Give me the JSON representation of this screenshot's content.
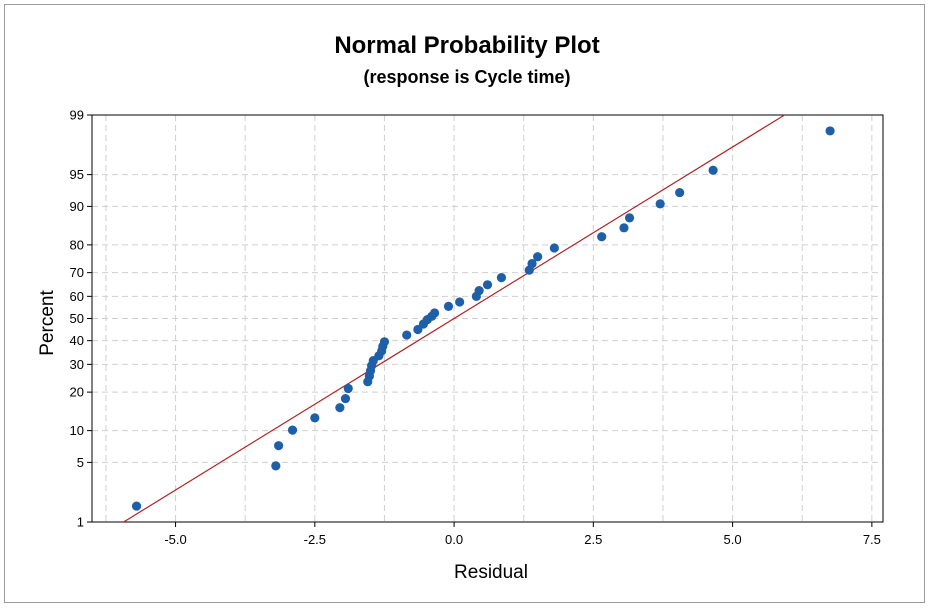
{
  "chart_data": {
    "type": "scatter",
    "title": "Normal Probability Plot",
    "subtitle": "(response is Cycle time)",
    "xlabel": "Residual",
    "ylabel": "Percent",
    "xlim": [
      -6.5,
      7.7
    ],
    "ylim_percent": [
      1,
      99
    ],
    "y_scale": "normal-probability",
    "grid": true,
    "x_ticks": [
      -5.0,
      -2.5,
      0.0,
      2.5,
      5.0,
      7.5
    ],
    "x_tick_labels": [
      "-5.0",
      "-2.5",
      "0.0",
      "2.5",
      "5.0",
      "7.5"
    ],
    "y_ticks": [
      1,
      5,
      10,
      20,
      30,
      40,
      50,
      60,
      70,
      80,
      90,
      95,
      99
    ],
    "y_tick_labels": [
      "1",
      "5",
      "10",
      "20",
      "30",
      "40",
      "50",
      "60",
      "70",
      "80",
      "90",
      "95",
      "99"
    ],
    "fit_line": {
      "mean": 0.0,
      "stdev": 2.55,
      "color": "#b22222"
    },
    "marker_color": "#1f5fa8",
    "points": [
      {
        "x": -5.7,
        "p": 1.6
      },
      {
        "x": -3.2,
        "p": 4.6
      },
      {
        "x": -3.15,
        "p": 7.3
      },
      {
        "x": -2.9,
        "p": 10.1
      },
      {
        "x": -2.5,
        "p": 12.8
      },
      {
        "x": -2.05,
        "p": 15.4
      },
      {
        "x": -1.95,
        "p": 18.0
      },
      {
        "x": -1.9,
        "p": 21.2
      },
      {
        "x": -1.55,
        "p": 23.5
      },
      {
        "x": -1.52,
        "p": 25.5
      },
      {
        "x": -1.5,
        "p": 27.5
      },
      {
        "x": -1.48,
        "p": 29.5
      },
      {
        "x": -1.45,
        "p": 31.5
      },
      {
        "x": -1.35,
        "p": 33.5
      },
      {
        "x": -1.3,
        "p": 35.5
      },
      {
        "x": -1.28,
        "p": 37.5
      },
      {
        "x": -1.25,
        "p": 39.5
      },
      {
        "x": -0.85,
        "p": 42.5
      },
      {
        "x": -0.65,
        "p": 45.0
      },
      {
        "x": -0.55,
        "p": 47.5
      },
      {
        "x": -0.48,
        "p": 49.5
      },
      {
        "x": -0.4,
        "p": 51.0
      },
      {
        "x": -0.35,
        "p": 52.5
      },
      {
        "x": -0.1,
        "p": 55.5
      },
      {
        "x": 0.1,
        "p": 57.5
      },
      {
        "x": 0.4,
        "p": 60.0
      },
      {
        "x": 0.45,
        "p": 62.5
      },
      {
        "x": 0.6,
        "p": 65.0
      },
      {
        "x": 0.85,
        "p": 68.0
      },
      {
        "x": 1.35,
        "p": 71.0
      },
      {
        "x": 1.4,
        "p": 73.5
      },
      {
        "x": 1.5,
        "p": 76.0
      },
      {
        "x": 1.8,
        "p": 79.0
      },
      {
        "x": 2.65,
        "p": 82.5
      },
      {
        "x": 3.05,
        "p": 85.0
      },
      {
        "x": 3.15,
        "p": 87.5
      },
      {
        "x": 3.7,
        "p": 90.5
      },
      {
        "x": 4.05,
        "p": 92.5
      },
      {
        "x": 4.65,
        "p": 95.5
      },
      {
        "x": 6.75,
        "p": 98.4
      }
    ]
  }
}
